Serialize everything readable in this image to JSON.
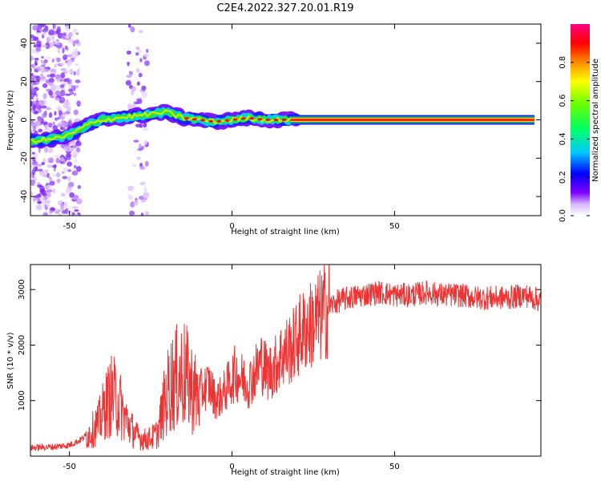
{
  "title": "C2E4.2022.327.20.01.R19",
  "chart_data": [
    {
      "type": "heatmap",
      "xlabel": "Height of straight line (km)",
      "ylabel": "Frequency (Hz)",
      "xlim": [
        -62,
        95
      ],
      "ylim": [
        -50,
        50
      ],
      "xticks": [
        -50,
        0,
        50
      ],
      "yticks": [
        -40,
        -20,
        0,
        20,
        40
      ],
      "colorbar": {
        "label": "Normalized spectral amplitude",
        "range": [
          0,
          1
        ],
        "ticks": [
          "0.0",
          "0.2",
          "0.4",
          "0.6",
          "0.8"
        ]
      },
      "ridge": {
        "note": "spectral ridge frequency vs height",
        "x": [
          -62,
          -55,
          -50,
          -45,
          -40,
          -35,
          -30,
          -25,
          -20,
          -15,
          -10,
          -5,
          0,
          5,
          10,
          15,
          20,
          30,
          40,
          50,
          60,
          70,
          80,
          93
        ],
        "y": [
          -11,
          -10,
          -8,
          -3,
          0,
          1,
          2,
          3,
          4,
          1,
          0,
          -1,
          0,
          1,
          0,
          0,
          0,
          0,
          0,
          0,
          0,
          0,
          0,
          0
        ]
      }
    },
    {
      "type": "line",
      "xlabel": "Height of straight line (km)",
      "ylabel": "SNR (10 * v/v)",
      "xlim": [
        -62,
        95
      ],
      "ylim": [
        0,
        3450
      ],
      "xticks": [
        -50,
        0,
        50
      ],
      "yticks": [
        1000,
        2000,
        3000
      ],
      "color": "#ee3333",
      "x": [
        -62,
        -58,
        -54,
        -50,
        -47,
        -44,
        -41,
        -39,
        -37,
        -35,
        -33,
        -31,
        -29,
        -27,
        -25,
        -23,
        -21,
        -19,
        -17,
        -15,
        -13,
        -11,
        -9,
        -7,
        -5,
        -3,
        -1,
        1,
        3,
        5,
        7,
        9,
        11,
        13,
        15,
        17,
        19,
        21,
        23,
        25,
        27,
        30,
        33,
        36,
        40,
        45,
        50,
        55,
        60,
        65,
        70,
        75,
        80,
        85,
        90,
        95
      ],
      "y": [
        150,
        160,
        170,
        200,
        280,
        400,
        600,
        900,
        1100,
        1000,
        700,
        500,
        350,
        300,
        320,
        400,
        900,
        1300,
        1400,
        1500,
        1300,
        1100,
        1200,
        1300,
        1000,
        1100,
        1300,
        1500,
        1400,
        1300,
        1500,
        1700,
        1500,
        1600,
        1800,
        1900,
        2000,
        2200,
        2300,
        2400,
        2500,
        2700,
        2800,
        2850,
        2900,
        2950,
        2900,
        2900,
        2950,
        2900,
        2900,
        2850,
        2850,
        2850,
        2900,
        2800
      ]
    }
  ]
}
